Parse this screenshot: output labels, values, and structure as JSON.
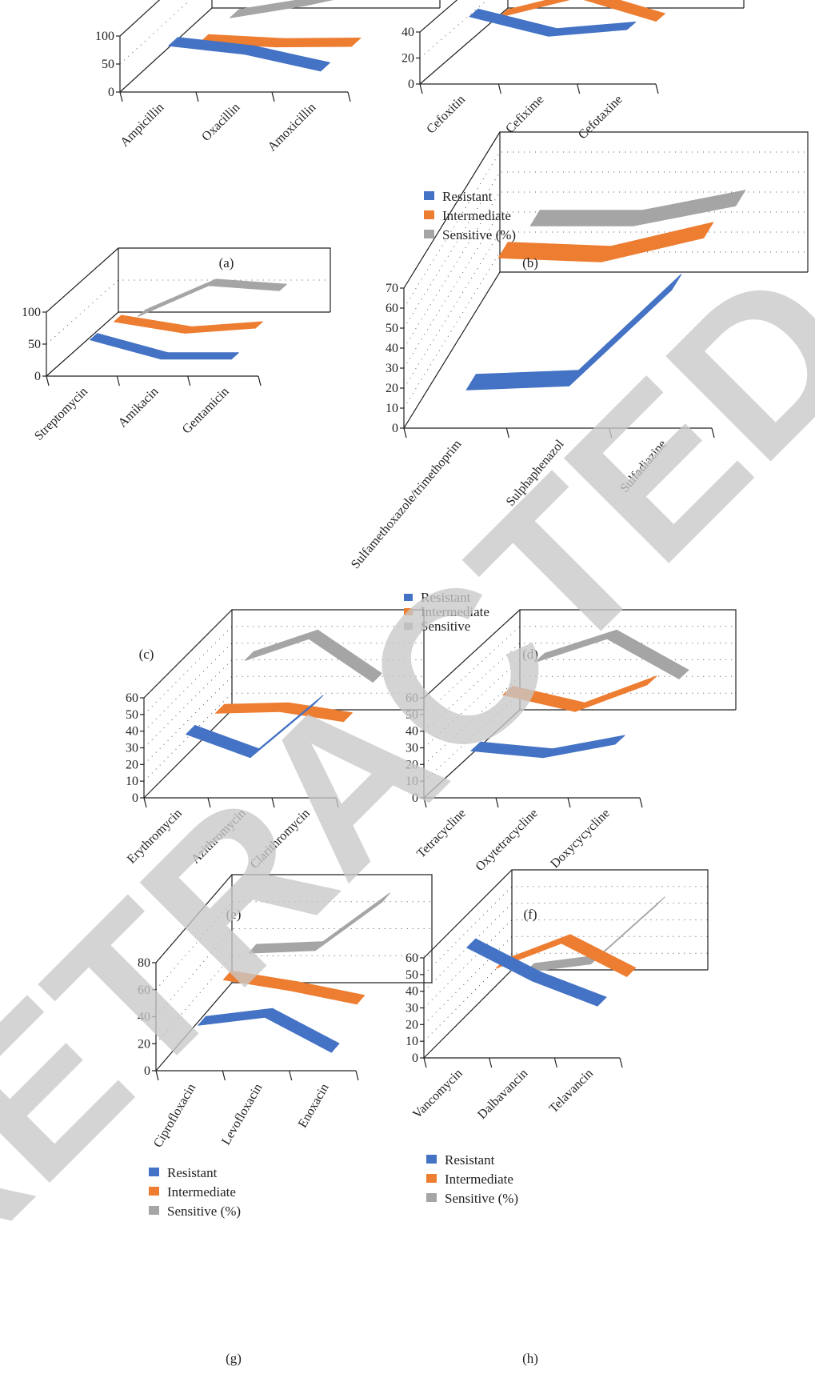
{
  "figure": {
    "watermark": "RETRACTED",
    "colors": {
      "resistant": "#4472C4",
      "intermediate": "#ED7D31",
      "sensitive": "#A5A5A5",
      "axis": "#222222",
      "watermark": "#c8c8c8"
    }
  },
  "legends": {
    "b": [
      "Resistant",
      "Intermediate",
      "Sensitive (%)"
    ],
    "d": [
      "Resistant",
      "Intermediate",
      "Sensitive"
    ],
    "g": [
      "Resistant",
      "Intermediate",
      "Sensitive (%)"
    ],
    "h": [
      "Resistant",
      "Intermediate",
      "Sensitive (%)"
    ]
  },
  "chart_data": [
    {
      "label": "(a)",
      "type": "line",
      "categories": [
        "Ampicillin",
        "Oxacillin",
        "Amoxicillin"
      ],
      "ylim": [
        0,
        100
      ],
      "yticks": [
        0,
        50,
        100
      ],
      "series": [
        {
          "name": "Resistant",
          "values": [
            65,
            50,
            20
          ]
        },
        {
          "name": "Intermediate",
          "values": [
            20,
            13,
            14
          ]
        },
        {
          "name": "Sensitive (%)",
          "values": [
            15,
            37,
            66
          ]
        }
      ]
    },
    {
      "label": "(b)",
      "type": "line",
      "categories": [
        "Cefoxitin",
        "Cefixime",
        "Cefotaxine"
      ],
      "ylim": [
        0,
        40
      ],
      "yticks": [
        0,
        20,
        40
      ],
      "series": [
        {
          "name": "Resistant",
          "values": [
            45,
            30,
            35
          ]
        },
        {
          "name": "Intermediate",
          "values": [
            25,
            40,
            22
          ]
        },
        {
          "name": "Sensitive (%)",
          "values": [
            30,
            30,
            43
          ]
        }
      ]
    },
    {
      "label": "(c)",
      "type": "line",
      "categories": [
        "Streptomycin",
        "Amikacin",
        "Gentamicin"
      ],
      "ylim": [
        0,
        100
      ],
      "yticks": [
        0,
        50,
        100
      ],
      "series": [
        {
          "name": "Resistant",
          "values": [
            45,
            15,
            15
          ]
        },
        {
          "name": "Intermediate",
          "values": [
            40,
            22,
            30
          ]
        },
        {
          "name": "Sensitive (%)",
          "values": [
            15,
            63,
            55
          ]
        }
      ]
    },
    {
      "label": "(d)",
      "type": "line",
      "categories": [
        "Sulfamethoxazole/trimethoprim",
        "Sulphaphenazol",
        "Sulfadiazine"
      ],
      "ylim": [
        0,
        70
      ],
      "yticks": [
        0,
        10,
        20,
        30,
        40,
        50,
        60,
        70
      ],
      "series": [
        {
          "name": "Resistant",
          "values": [
            10,
            12,
            60
          ]
        },
        {
          "name": "Intermediate",
          "values": [
            50,
            48,
            60
          ]
        },
        {
          "name": "Sensitive",
          "values": [
            40,
            40,
            50
          ]
        }
      ]
    },
    {
      "label": "(e)",
      "type": "line",
      "categories": [
        "Erythromycin",
        "Azithromycin",
        "Clarithromycin"
      ],
      "ylim": [
        0,
        60
      ],
      "yticks": [
        0,
        10,
        20,
        30,
        40,
        50,
        60
      ],
      "series": [
        {
          "name": "Resistant",
          "values": [
            32,
            18,
            50
          ]
        },
        {
          "name": "Intermediate",
          "values": [
            27,
            28,
            22
          ]
        },
        {
          "name": "Sensitive",
          "values": [
            41,
            54,
            28
          ]
        }
      ]
    },
    {
      "label": "(f)",
      "type": "line",
      "categories": [
        "Tetracycline",
        "Oxytetracycline",
        "Doxycycycline"
      ],
      "ylim": [
        0,
        60
      ],
      "yticks": [
        0,
        10,
        20,
        30,
        40,
        50,
        60
      ],
      "series": [
        {
          "name": "Resistant",
          "values": [
            22,
            18,
            26
          ]
        },
        {
          "name": "Intermediate",
          "values": [
            38,
            28,
            44
          ]
        },
        {
          "name": "Sensitive",
          "values": [
            40,
            54,
            30
          ]
        }
      ]
    },
    {
      "label": "(g)",
      "type": "line",
      "categories": [
        "Ciprofloxacin",
        "Levofloxacin",
        "Enoxacin"
      ],
      "ylim": [
        0,
        80
      ],
      "yticks": [
        0,
        20,
        40,
        60,
        80
      ],
      "series": [
        {
          "name": "Resistant",
          "values": [
            26,
            32,
            6
          ]
        },
        {
          "name": "Intermediate",
          "values": [
            38,
            30,
            20
          ]
        },
        {
          "name": "Sensitive (%)",
          "values": [
            36,
            38,
            74
          ]
        }
      ]
    },
    {
      "label": "(h)",
      "type": "line",
      "categories": [
        "Vancomycin",
        "Dalbavancin",
        "Telavancin"
      ],
      "ylim": [
        0,
        60
      ],
      "yticks": [
        0,
        10,
        20,
        30,
        40,
        50,
        60
      ],
      "series": [
        {
          "name": "Resistant",
          "values": [
            60,
            40,
            25
          ]
        },
        {
          "name": "Intermediate",
          "values": [
            30,
            45,
            25
          ]
        },
        {
          "name": "Sensitive (%)",
          "values": [
            10,
            15,
            50
          ]
        }
      ]
    }
  ]
}
